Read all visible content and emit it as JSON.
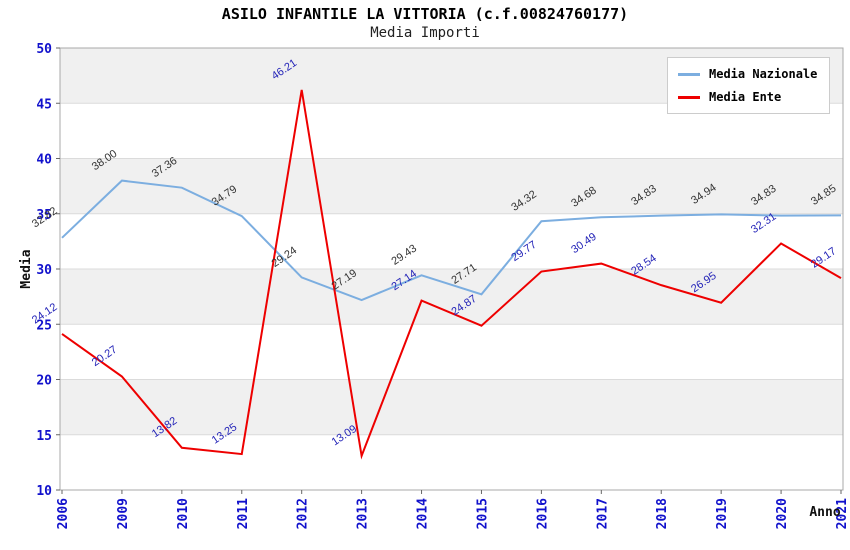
{
  "chart": {
    "title": "ASILO INFANTILE LA VITTORIA (c.f.00824760177)",
    "subtitle": "Media Importi"
  },
  "chart_data": {
    "type": "line",
    "categories": [
      "2006",
      "2009",
      "2010",
      "2011",
      "2012",
      "2013",
      "2014",
      "2015",
      "2016",
      "2017",
      "2018",
      "2019",
      "2020",
      "2021"
    ],
    "series": [
      {
        "name": "Media Nazionale",
        "color": "#7CAEE0",
        "label_color": "#333333",
        "values": [
          32.82,
          38.0,
          37.36,
          34.79,
          29.24,
          27.19,
          29.43,
          27.71,
          34.32,
          34.68,
          34.83,
          34.94,
          34.83,
          34.85
        ],
        "labels": [
          "32.82",
          "38.00",
          "37.36",
          "34.79",
          "29.24",
          "27.19",
          "29.43",
          "27.71",
          "34.32",
          "34.68",
          "34.83",
          "34.94",
          "34.83",
          "34.85"
        ]
      },
      {
        "name": "Media Ente",
        "color": "#EE0000",
        "label_color": "#2424B8",
        "values": [
          24.12,
          20.27,
          13.82,
          13.25,
          46.21,
          13.09,
          27.14,
          24.87,
          29.77,
          30.49,
          28.54,
          26.95,
          32.31,
          29.17
        ],
        "labels": [
          "24.12",
          "20.27",
          "13.82",
          "13.25",
          "46.21",
          "13.09",
          "27.14",
          "24.87",
          "29.77",
          "30.49",
          "28.54",
          "26.95",
          "32.31",
          "29.17"
        ]
      }
    ],
    "xlabel": "Anno",
    "ylabel": "Media",
    "ylim": [
      10,
      50
    ],
    "ytick_step": 5,
    "yticks": [
      "10",
      "15",
      "20",
      "25",
      "30",
      "35",
      "40",
      "45",
      "50"
    ],
    "grid": true,
    "legend_position": "top-right",
    "band_color": "#F0F0F0",
    "gridline_color": "#DBDBDB",
    "plot_border_color": "#A8A8A8",
    "tick_label_color": "#1111CC"
  }
}
